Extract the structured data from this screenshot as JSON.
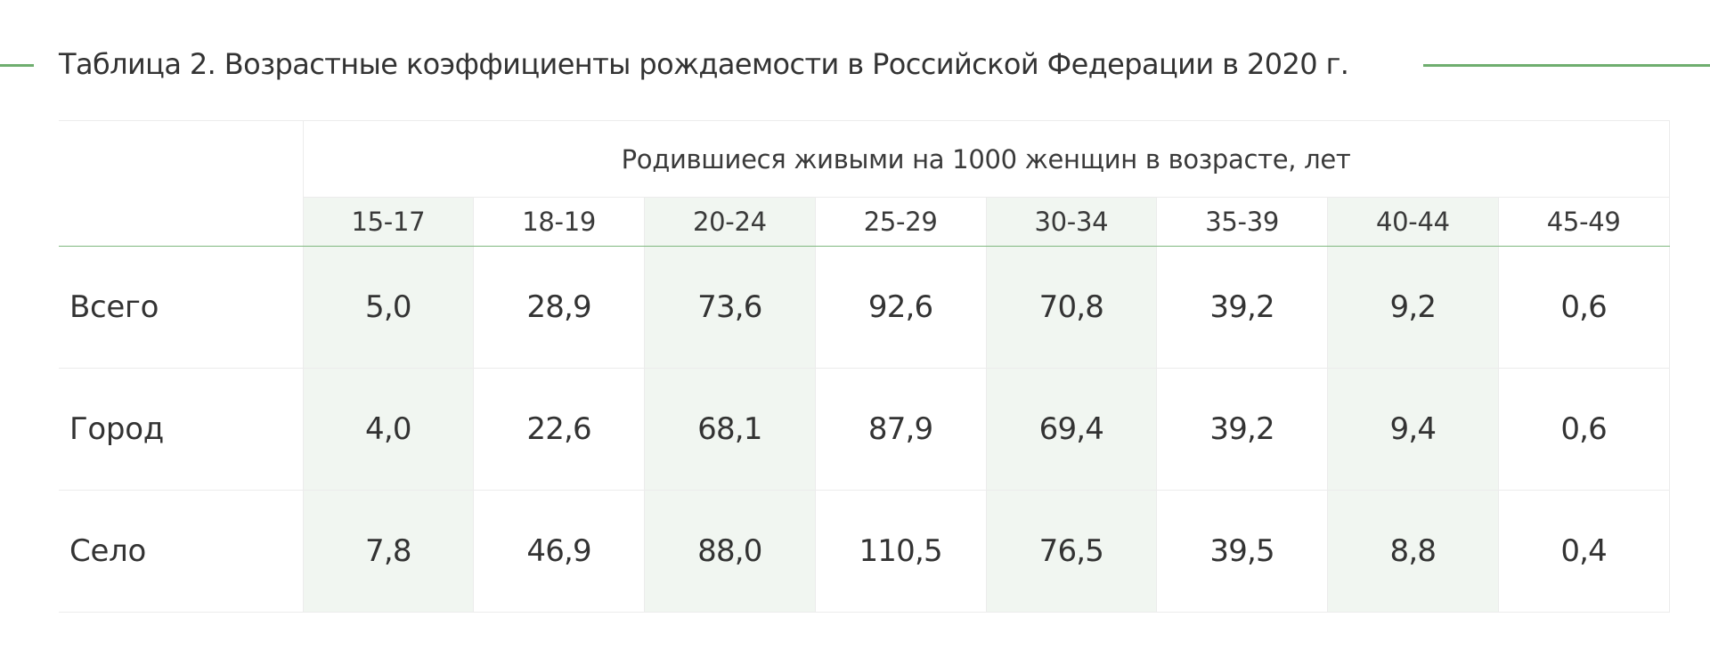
{
  "title": "Таблица 2. Возрастные коэффициенты рождаемости в Российской Федерации в 2020 г.",
  "accent_color": "#6fae6f",
  "shade_color": "#f1f6f1",
  "table": {
    "group_header": "Родившиеся живыми на 1000 женщин в возрасте, лет",
    "age_groups": [
      "15-17",
      "18-19",
      "20-24",
      "25-29",
      "30-34",
      "35-39",
      "40-44",
      "45-49"
    ],
    "rows": [
      {
        "label": "Всего",
        "values": [
          "5,0",
          "28,9",
          "73,6",
          "92,6",
          "70,8",
          "39,2",
          "9,2",
          "0,6"
        ]
      },
      {
        "label": "Город",
        "values": [
          "4,0",
          "22,6",
          "68,1",
          "87,9",
          "69,4",
          "39,2",
          "9,4",
          "0,6"
        ]
      },
      {
        "label": "Село",
        "values": [
          "7,8",
          "46,9",
          "88,0",
          "110,5",
          "76,5",
          "39,5",
          "8,8",
          "0,4"
        ]
      }
    ]
  }
}
